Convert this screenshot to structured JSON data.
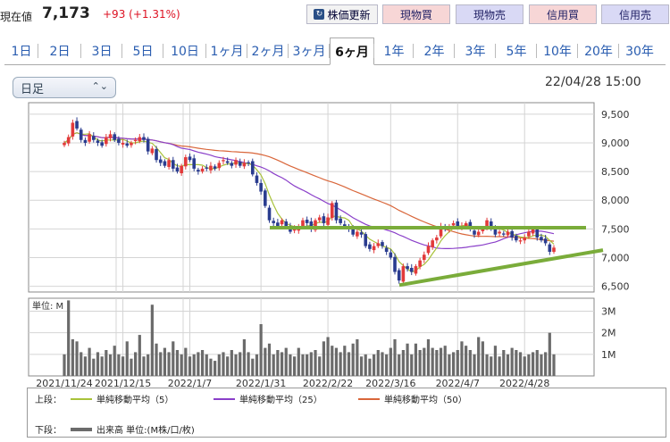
{
  "header": {
    "price_label": "現在値",
    "price": "7,173",
    "change": "+93 (+1.31%)",
    "refresh_label": "株価更新",
    "buttons": [
      "現物買",
      "現物売",
      "信用買",
      "信用売"
    ]
  },
  "tabs": [
    "1日",
    "2日",
    "3日",
    "5日",
    "10日",
    "1ヶ月",
    "2ヶ月",
    "3ヶ月",
    "6ヶ月",
    "1年",
    "2年",
    "3年",
    "5年",
    "10年",
    "20年",
    "30年"
  ],
  "active_tab": "6ヶ月",
  "controls": {
    "period_select": "日足"
  },
  "timestamp": "22/04/28 15:00",
  "legend": {
    "upper_label": "上段：",
    "lower_label": "下段：",
    "ma5": "単純移動平均（5）",
    "ma25": "単純移動平均（25）",
    "ma50": "単純移動平均（50）",
    "volume": "出来高 単位:(M株/口/枚)"
  },
  "colors": {
    "up": "#e23a3a",
    "down": "#2a3c8f",
    "ma5": "#a8c23a",
    "ma25": "#8a3fc9",
    "ma50": "#d9663a",
    "trend": "#7aac3a",
    "volume": "#6b6b6b"
  },
  "chart_data": {
    "type": "candlestick",
    "price": {
      "ylim": [
        6400,
        9700
      ],
      "yticks": [
        "9,500",
        "9,000",
        "8,500",
        "8,000",
        "7,500",
        "7,000",
        "6,500"
      ],
      "ytick_values": [
        9500,
        9000,
        8500,
        8000,
        7500,
        7000,
        6500
      ],
      "close": [
        9000,
        9100,
        9350,
        9250,
        9050,
        9000,
        9150,
        9050,
        9000,
        8950,
        9100,
        9150,
        9050,
        9000,
        9000,
        8950,
        9000,
        9050,
        9100,
        9050,
        8850,
        8900,
        8700,
        8650,
        8600,
        8700,
        8550,
        8500,
        8600,
        8750,
        8700,
        8550,
        8500,
        8550,
        8550,
        8600,
        8550,
        8650,
        8700,
        8650,
        8600,
        8700,
        8600,
        8650,
        8650,
        8450,
        8300,
        8150,
        7900,
        7650,
        7600,
        7550,
        7650,
        7550,
        7450,
        7500,
        7550,
        7650,
        7600,
        7500,
        7650,
        7700,
        7600,
        7700,
        7950,
        7650,
        7600,
        7550,
        7500,
        7400,
        7450,
        7400,
        7200,
        7150,
        7200,
        7250,
        7200,
        7100,
        7000,
        6750,
        6600,
        6850,
        6800,
        6750,
        6850,
        6950,
        7050,
        7200,
        7300,
        7350,
        7550,
        7500,
        7550,
        7600,
        7550,
        7550,
        7600,
        7500,
        7400,
        7450,
        7500,
        7650,
        7500,
        7400,
        7450,
        7400,
        7450,
        7350,
        7300,
        7300,
        7350,
        7450,
        7500,
        7350,
        7300,
        7250,
        7100,
        7173
      ],
      "ma5_label": "単純移動平均（5）",
      "ma25_label": "単純移動平均（25）",
      "ma50_label": "単純移動平均（50）",
      "resistance": 7520,
      "support_line": {
        "from": 6520,
        "to": 7130
      }
    },
    "volume": {
      "unit_label": "単位: M",
      "ylim": [
        0,
        3.6
      ],
      "yticks": [
        "3M",
        "2M",
        "1M"
      ],
      "ytick_values": [
        3,
        2,
        1
      ],
      "values": [
        1.0,
        3.5,
        1.7,
        1.6,
        1.1,
        0.9,
        1.3,
        0.8,
        1.1,
        0.9,
        1.2,
        1.0,
        1.4,
        1.0,
        0.9,
        1.6,
        0.8,
        1.1,
        1.9,
        0.9,
        1.0,
        3.3,
        1.5,
        1.1,
        1.3,
        1.1,
        1.6,
        1.2,
        1.0,
        1.3,
        0.9,
        1.0,
        1.1,
        1.2,
        1.0,
        0.8,
        0.7,
        1.0,
        1.1,
        0.9,
        1.2,
        1.0,
        1.1,
        1.7,
        1.1,
        0.8,
        1.0,
        2.4,
        1.3,
        1.5,
        1.0,
        1.2,
        1.1,
        1.3,
        1.0,
        0.9,
        1.3,
        1.0,
        1.0,
        1.1,
        1.2,
        0.9,
        1.6,
        1.8,
        1.4,
        1.3,
        1.1,
        1.4,
        1.1,
        1.5,
        1.7,
        0.9,
        1.0,
        0.8,
        1.0,
        1.2,
        1.1,
        1.0,
        1.3,
        1.7,
        1.0,
        1.2,
        1.5,
        1.0,
        1.5,
        1.2,
        1.3,
        1.7,
        1.3,
        1.2,
        1.3,
        1.4,
        1.0,
        1.1,
        1.2,
        1.6,
        1.4,
        1.2,
        1.0,
        1.8,
        1.6,
        1.0,
        0.9,
        1.4,
        0.9,
        1.2,
        1.0,
        1.3,
        1.2,
        1.1,
        0.9,
        1.0,
        1.1,
        1.2,
        1.0,
        1.1,
        2.0,
        1.0
      ]
    },
    "x_labels": [
      "2021/11/24",
      "2021/12/15",
      "2022/1/7",
      "2022/1/31",
      "2022/2/22",
      "2022/3/16",
      "2022/4/7",
      "2022/4/28"
    ],
    "x_label_index": [
      0,
      14,
      30,
      47,
      63,
      78,
      94,
      110
    ]
  }
}
